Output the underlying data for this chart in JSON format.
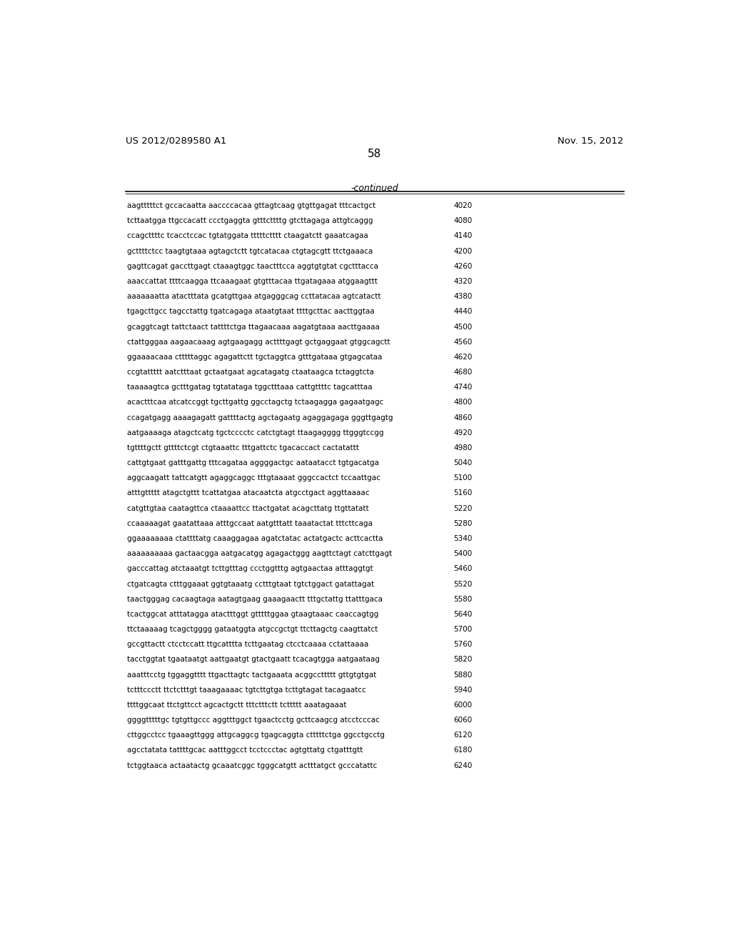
{
  "header_left": "US 2012/0289580 A1",
  "header_right": "Nov. 15, 2012",
  "page_number": "58",
  "continued_label": "-continued",
  "background_color": "#ffffff",
  "text_color": "#000000",
  "font_size": 7.5,
  "header_font_size": 9.5,
  "page_num_font_size": 11,
  "sequence_lines": [
    [
      "aagtttttct gccacaatta aaccccacaa gttagtcaag gtgttgagat tttcactgct",
      "4020"
    ],
    [
      "tcttaatgga ttgccacatt ccctgaggta gtttcttttg gtcttagaga attgtcaggg",
      "4080"
    ],
    [
      "ccagcttttc tcacctccac tgtatggata tttttctttt ctaagatctt gaaatcagaa",
      "4140"
    ],
    [
      "gcttttctcc taagtgtaaa agtagctctt tgtcatacaa ctgtagcgtt ttctgaaaca",
      "4200"
    ],
    [
      "gagttcagat gaccttgagt ctaaagtggc taactttcca aggtgtgtat cgctttacca",
      "4260"
    ],
    [
      "aaaccattat ttttcaagga ttcaaagaat gtgtttacaa ttgatagaaa atggaagttt",
      "4320"
    ],
    [
      "aaaaaaatta atactttata gcatgttgaa atgagggcag ccttatacaa agtcatactt",
      "4380"
    ],
    [
      "tgagcttgcc tagcctattg tgatcagaga ataatgtaat ttttgcttac aacttggtaa",
      "4440"
    ],
    [
      "gcaggtcagt tattctaact tattttctga ttagaacaaa aagatgtaaa aacttgaaaa",
      "4500"
    ],
    [
      "ctattgggaa aagaacaaag agtgaagagg acttttgagt gctgaggaat gtggcagctt",
      "4560"
    ],
    [
      "ggaaaacaaa ctttttaggc agagattctt tgctaggtca gtttgataaa gtgagcataa",
      "4620"
    ],
    [
      "ccgtattttt aatctttaat gctaatgaat agcatagatg ctaataagca tctaggtcta",
      "4680"
    ],
    [
      "taaaaagtca gctttgatag tgtatataga tggctttaaa cattgttttc tagcatttaa",
      "4740"
    ],
    [
      "acactttcaa atcatccggt tgcttgattg ggcctagctg tctaagagga gagaatgagc",
      "4800"
    ],
    [
      "ccagatgagg aaaagagatt gattttactg agctagaatg agaggagaga gggttgagtg",
      "4860"
    ],
    [
      "aatgaaaaga atagctcatg tgctcccctc catctgtagt ttaagagggg ttgggtccgg",
      "4920"
    ],
    [
      "tgttttgctt gttttctcgt ctgtaaattc tttgattctc tgacaccact cactatattt",
      "4980"
    ],
    [
      "cattgtgaat gatttgattg tttcagataa aggggactgc aataatacct tgtgacatga",
      "5040"
    ],
    [
      "aggcaagatt tattcatgtt agaggcaggc tttgtaaaat gggccactct tccaattgac",
      "5100"
    ],
    [
      "atttgttttt atagctgttt tcattatgaa atacaatcta atgcctgact aggttaaaac",
      "5160"
    ],
    [
      "catgttgtaa caatagttca ctaaaattcc ttactgatat acagcttatg ttgttatatt",
      "5220"
    ],
    [
      "ccaaaaagat gaatattaaa atttgccaat aatgtttatt taaatactat tttcttcaga",
      "5280"
    ],
    [
      "ggaaaaaaaa ctattttatg caaaggagaa agatctatac actatgactc acttcactta",
      "5340"
    ],
    [
      "aaaaaaaaaa gactaacgga aatgacatgg agagactggg aagttctagt catcttgagt",
      "5400"
    ],
    [
      "gacccattag atctaaatgt tcttgtttag ccctggtttg agtgaactaa atttaggtgt",
      "5460"
    ],
    [
      "ctgatcagta ctttggaaat ggtgtaaatg cctttgtaat tgtctggact gatattagat",
      "5520"
    ],
    [
      "taactgggag cacaagtaga aatagtgaag gaaagaactt tttgctattg ttatttgaca",
      "5580"
    ],
    [
      "tcactggcat atttatagga atactttggt gtttttggaa gtaagtaaac caaccagtgg",
      "5640"
    ],
    [
      "ttctaaaaag tcagctgggg gataatggta atgccgctgt ttcttagctg caagttatct",
      "5700"
    ],
    [
      "gccgttactt ctcctccatt ttgcatttta tcttgaatag ctcctcaaaa cctattaaaa",
      "5760"
    ],
    [
      "tacctggtat tgaataatgt aattgaatgt gtactgaatt tcacagtgga aatgaataag",
      "5820"
    ],
    [
      "aaatttcctg tggaggtttt ttgacttagtc tactgaaata acggccttttt gttgtgtgat",
      "5880"
    ],
    [
      "tctttccctt ttctctttgt taaagaaaac tgtcttgtga tcttgtagat tacagaatcc",
      "5940"
    ],
    [
      "ttttggcaat ttctgttcct agcactgctt tttctttctt tcttttt aaatagaaat",
      "6000"
    ],
    [
      "ggggtttttgc tgtgttgccc aggtttggct tgaactcctg gcttcaagcg atcctcccac",
      "6060"
    ],
    [
      "cttggcctcc tgaaagttggg attgcaggcg tgagcaggta ctttttctga ggcctgcctg",
      "6120"
    ],
    [
      "agcctatata tattttgcac aatttggcct tcctccctac agtgttatg ctgatttgtt",
      "6180"
    ],
    [
      "tctggtaaca actaatactg gcaaatcggc tgggcatgtt actttatgct gcccatattc",
      "6240"
    ]
  ]
}
